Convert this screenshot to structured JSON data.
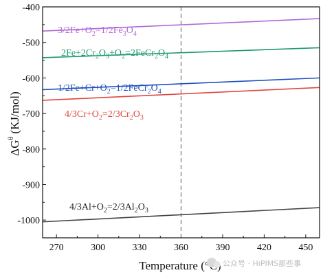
{
  "chart_data": {
    "type": "line",
    "xlabel": "Temperature (°C)",
    "ylabel": "ΔGθ (KJ/mol)",
    "xlim": [
      260,
      460
    ],
    "ylim": [
      -1050,
      -400
    ],
    "xticks": [
      270,
      300,
      330,
      360,
      390,
      420,
      450
    ],
    "yticks": [
      -1000,
      -900,
      -800,
      -700,
      -600,
      -500,
      -400
    ],
    "grid": false,
    "legend": "inline labels above each line",
    "reference_line": {
      "x": 360,
      "style": "dashed",
      "color": "#7f7f7f"
    },
    "series": [
      {
        "name": "3/2Fe+O2=1/2Fe3O4",
        "color": "#b06ad6",
        "x": [
          260,
          460
        ],
        "y": [
          -468,
          -433
        ]
      },
      {
        "name": "2Fe+2Cr2O3+O2=2FeCr2O4",
        "color": "#1a9a6a",
        "x": [
          260,
          460
        ],
        "y": [
          -543,
          -515
        ]
      },
      {
        "name": "1/2Fe+Cr+O2=1/2FeCr2O4",
        "color": "#1f4fbf",
        "x": [
          260,
          460
        ],
        "y": [
          -633,
          -600
        ]
      },
      {
        "name": "4/3Cr+O2=2/3Cr2O3",
        "color": "#e0463e",
        "x": [
          260,
          460
        ],
        "y": [
          -663,
          -627
        ]
      },
      {
        "name": "4/3Al+O2=2/3Al2O3",
        "color": "#444444",
        "x": [
          260,
          460
        ],
        "y": [
          -1005,
          -965
        ]
      }
    ]
  },
  "labels": {
    "fe3o4": {
      "a": "3/2Fe+O",
      "b": "2",
      "c": "=1/2Fe",
      "d": "3",
      "e": "O",
      "f": "4"
    },
    "fecr2o4_a": {
      "a": "2Fe+2Cr",
      "b": "2",
      "c": "O",
      "d": "3",
      "e": "+O",
      "f": "2",
      "g": "=2FeCr",
      "h": "2",
      "i": "O",
      "j": "4"
    },
    "fecr2o4_b": {
      "a": "1/2Fe+Cr+O",
      "b": "2",
      "c": "=1/2FeCr",
      "d": "2",
      "e": "O",
      "f": "4"
    },
    "cr2o3": {
      "a": "4/3Cr+O",
      "b": "2",
      "c": "=2/3Cr",
      "d": "2",
      "e": "O",
      "f": "3"
    },
    "al2o3": {
      "a": "4/3Al+O",
      "b": "2",
      "c": "=2/3Al",
      "d": "2",
      "e": "O",
      "f": "3"
    }
  },
  "axis_titles": {
    "x": "Temperature (°C)",
    "y_main": "ΔG",
    "y_sup": "θ",
    "y_unit": " (KJ/mol)"
  },
  "watermark": "公众号 · HiPIMS那些事"
}
